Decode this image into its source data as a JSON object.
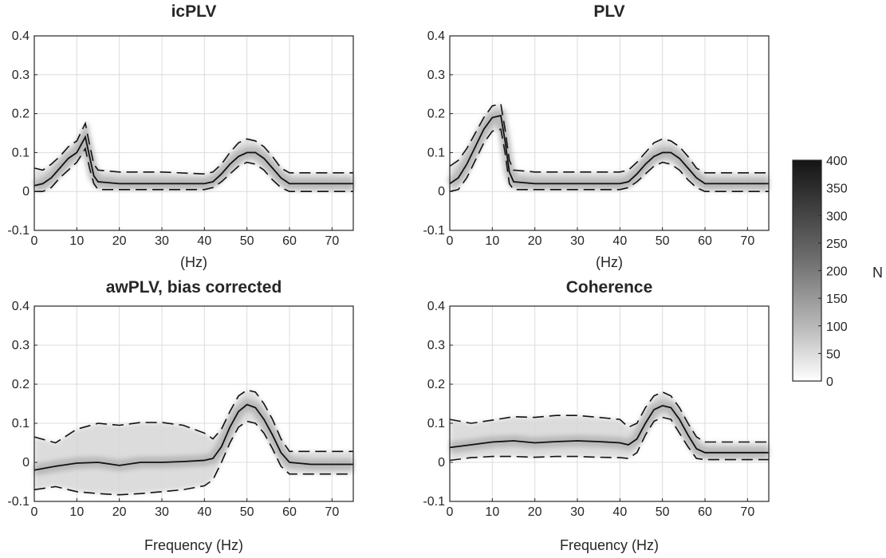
{
  "figure": {
    "colorbar": {
      "label": "N",
      "ticks": [
        0,
        50,
        100,
        150,
        200,
        250,
        300,
        350,
        400
      ],
      "range": [
        0,
        400
      ],
      "colormap": "white-to-black"
    }
  },
  "chart_data": [
    {
      "type": "line",
      "title": "icPLV",
      "xlabel": "(Hz)",
      "ylabel": "",
      "xlim": [
        0,
        75
      ],
      "ylim": [
        -0.1,
        0.4
      ],
      "xticks": [
        0,
        10,
        20,
        30,
        40,
        50,
        60,
        70
      ],
      "yticks": [
        -0.1,
        0,
        0.1,
        0.2,
        0.3,
        0.4
      ],
      "grid": true,
      "series": [
        {
          "role": "median",
          "style": "solid",
          "x": [
            0,
            2,
            4,
            6,
            8,
            10,
            12,
            13,
            14,
            15,
            20,
            30,
            40,
            42,
            44,
            46,
            48,
            50,
            52,
            54,
            56,
            58,
            60,
            65,
            70,
            75
          ],
          "y": [
            0.015,
            0.02,
            0.035,
            0.06,
            0.085,
            0.1,
            0.14,
            0.09,
            0.04,
            0.025,
            0.02,
            0.02,
            0.02,
            0.025,
            0.045,
            0.07,
            0.09,
            0.1,
            0.1,
            0.085,
            0.06,
            0.035,
            0.02,
            0.02,
            0.02,
            0.02
          ]
        },
        {
          "role": "upper",
          "style": "dashed",
          "x": [
            0,
            2,
            4,
            6,
            8,
            10,
            12,
            13,
            14,
            15,
            20,
            30,
            40,
            42,
            44,
            46,
            48,
            50,
            52,
            54,
            56,
            58,
            60,
            65,
            70,
            75
          ],
          "y": [
            0.06,
            0.055,
            0.07,
            0.09,
            0.115,
            0.13,
            0.175,
            0.12,
            0.07,
            0.055,
            0.05,
            0.05,
            0.045,
            0.05,
            0.07,
            0.1,
            0.125,
            0.135,
            0.13,
            0.115,
            0.09,
            0.06,
            0.048,
            0.048,
            0.048,
            0.048
          ]
        },
        {
          "role": "lower",
          "style": "dashed",
          "x": [
            0,
            2,
            4,
            6,
            8,
            10,
            12,
            13,
            14,
            15,
            20,
            30,
            40,
            42,
            44,
            46,
            48,
            50,
            52,
            54,
            56,
            58,
            60,
            65,
            70,
            75
          ],
          "y": [
            0.0,
            0.0,
            0.01,
            0.035,
            0.055,
            0.075,
            0.11,
            0.06,
            0.02,
            0.005,
            0.005,
            0.005,
            0.005,
            0.01,
            0.025,
            0.045,
            0.065,
            0.075,
            0.07,
            0.055,
            0.03,
            0.01,
            0.0,
            0.0,
            0.0,
            0.0
          ]
        }
      ]
    },
    {
      "type": "line",
      "title": "PLV",
      "xlabel": "(Hz)",
      "ylabel": "",
      "xlim": [
        0,
        75
      ],
      "ylim": [
        -0.1,
        0.4
      ],
      "xticks": [
        0,
        10,
        20,
        30,
        40,
        50,
        60,
        70
      ],
      "yticks": [
        -0.1,
        0,
        0.1,
        0.2,
        0.3,
        0.4
      ],
      "grid": true,
      "series": [
        {
          "role": "median",
          "style": "solid",
          "x": [
            0,
            2,
            4,
            6,
            8,
            10,
            12,
            13,
            14,
            15,
            20,
            30,
            40,
            42,
            44,
            46,
            48,
            50,
            52,
            54,
            56,
            58,
            60,
            65,
            70,
            75
          ],
          "y": [
            0.02,
            0.035,
            0.07,
            0.115,
            0.16,
            0.19,
            0.195,
            0.13,
            0.05,
            0.025,
            0.02,
            0.02,
            0.02,
            0.025,
            0.045,
            0.07,
            0.09,
            0.1,
            0.1,
            0.085,
            0.06,
            0.035,
            0.02,
            0.02,
            0.02,
            0.02
          ]
        },
        {
          "role": "upper",
          "style": "dashed",
          "x": [
            0,
            2,
            4,
            6,
            8,
            10,
            12,
            13,
            14,
            15,
            20,
            30,
            40,
            42,
            44,
            46,
            48,
            50,
            52,
            54,
            56,
            58,
            60,
            65,
            70,
            75
          ],
          "y": [
            0.065,
            0.08,
            0.11,
            0.15,
            0.19,
            0.22,
            0.225,
            0.16,
            0.08,
            0.055,
            0.05,
            0.05,
            0.05,
            0.055,
            0.075,
            0.1,
            0.125,
            0.135,
            0.13,
            0.115,
            0.09,
            0.06,
            0.048,
            0.048,
            0.048,
            0.048
          ]
        },
        {
          "role": "lower",
          "style": "dashed",
          "x": [
            0,
            2,
            4,
            6,
            8,
            10,
            12,
            13,
            14,
            15,
            20,
            30,
            40,
            42,
            44,
            46,
            48,
            50,
            52,
            54,
            56,
            58,
            60,
            65,
            70,
            75
          ],
          "y": [
            0.0,
            0.005,
            0.035,
            0.08,
            0.125,
            0.155,
            0.16,
            0.1,
            0.02,
            0.005,
            0.005,
            0.005,
            0.005,
            0.01,
            0.025,
            0.045,
            0.065,
            0.075,
            0.07,
            0.055,
            0.03,
            0.01,
            0.0,
            0.0,
            0.0,
            0.0
          ]
        }
      ]
    },
    {
      "type": "line",
      "title": "awPLV, bias corrected",
      "xlabel": "Frequency (Hz)",
      "ylabel": "",
      "xlim": [
        0,
        75
      ],
      "ylim": [
        -0.1,
        0.4
      ],
      "xticks": [
        0,
        10,
        20,
        30,
        40,
        50,
        60,
        70
      ],
      "yticks": [
        -0.1,
        0,
        0.1,
        0.2,
        0.3,
        0.4
      ],
      "grid": true,
      "series": [
        {
          "role": "median",
          "style": "solid",
          "x": [
            0,
            5,
            10,
            15,
            20,
            25,
            30,
            35,
            40,
            42,
            44,
            46,
            48,
            50,
            52,
            54,
            56,
            58,
            60,
            65,
            70,
            75
          ],
          "y": [
            -0.02,
            -0.01,
            -0.002,
            0.0,
            -0.008,
            0.0,
            0.0,
            0.002,
            0.005,
            0.01,
            0.04,
            0.09,
            0.13,
            0.148,
            0.14,
            0.11,
            0.07,
            0.025,
            0.0,
            -0.005,
            -0.005,
            -0.005
          ]
        },
        {
          "role": "upper",
          "style": "dashed",
          "x": [
            0,
            5,
            10,
            15,
            20,
            25,
            30,
            35,
            40,
            42,
            44,
            46,
            48,
            50,
            52,
            54,
            56,
            58,
            60,
            65,
            70,
            75
          ],
          "y": [
            0.065,
            0.05,
            0.085,
            0.1,
            0.095,
            0.102,
            0.102,
            0.095,
            0.075,
            0.06,
            0.085,
            0.13,
            0.17,
            0.185,
            0.18,
            0.15,
            0.11,
            0.06,
            0.028,
            0.028,
            0.028,
            0.028
          ]
        },
        {
          "role": "lower",
          "style": "dashed",
          "x": [
            0,
            5,
            10,
            15,
            20,
            25,
            30,
            35,
            40,
            42,
            44,
            46,
            48,
            50,
            52,
            54,
            56,
            58,
            60,
            65,
            70,
            75
          ],
          "y": [
            -0.07,
            -0.062,
            -0.075,
            -0.08,
            -0.083,
            -0.08,
            -0.075,
            -0.07,
            -0.06,
            -0.045,
            0.0,
            0.05,
            0.09,
            0.105,
            0.1,
            0.075,
            0.035,
            -0.01,
            -0.03,
            -0.03,
            -0.03,
            -0.03
          ]
        }
      ]
    },
    {
      "type": "line",
      "title": "Coherence",
      "xlabel": "Frequency (Hz)",
      "ylabel": "",
      "xlim": [
        0,
        75
      ],
      "ylim": [
        -0.1,
        0.4
      ],
      "xticks": [
        0,
        10,
        20,
        30,
        40,
        50,
        60,
        70
      ],
      "yticks": [
        -0.1,
        0,
        0.1,
        0.2,
        0.3,
        0.4
      ],
      "grid": true,
      "series": [
        {
          "role": "median",
          "style": "solid",
          "x": [
            0,
            5,
            10,
            15,
            20,
            25,
            30,
            35,
            40,
            42,
            44,
            46,
            48,
            50,
            52,
            54,
            56,
            58,
            60,
            65,
            70,
            75
          ],
          "y": [
            0.038,
            0.045,
            0.052,
            0.055,
            0.05,
            0.053,
            0.055,
            0.053,
            0.05,
            0.045,
            0.06,
            0.1,
            0.135,
            0.145,
            0.14,
            0.11,
            0.07,
            0.035,
            0.025,
            0.025,
            0.025,
            0.025
          ]
        },
        {
          "role": "upper",
          "style": "dashed",
          "x": [
            0,
            5,
            10,
            15,
            20,
            25,
            30,
            35,
            40,
            42,
            44,
            46,
            48,
            50,
            52,
            54,
            56,
            58,
            60,
            65,
            70,
            75
          ],
          "y": [
            0.11,
            0.1,
            0.108,
            0.117,
            0.115,
            0.12,
            0.12,
            0.115,
            0.11,
            0.09,
            0.1,
            0.14,
            0.17,
            0.18,
            0.17,
            0.14,
            0.1,
            0.065,
            0.052,
            0.052,
            0.052,
            0.052
          ]
        },
        {
          "role": "lower",
          "style": "dashed",
          "x": [
            0,
            5,
            10,
            15,
            20,
            25,
            30,
            35,
            40,
            42,
            44,
            46,
            48,
            50,
            52,
            54,
            56,
            58,
            60,
            65,
            70,
            75
          ],
          "y": [
            0.005,
            0.012,
            0.015,
            0.015,
            0.013,
            0.015,
            0.015,
            0.013,
            0.012,
            0.01,
            0.025,
            0.07,
            0.105,
            0.115,
            0.11,
            0.075,
            0.04,
            0.01,
            0.007,
            0.007,
            0.007,
            0.007
          ]
        }
      ]
    }
  ]
}
